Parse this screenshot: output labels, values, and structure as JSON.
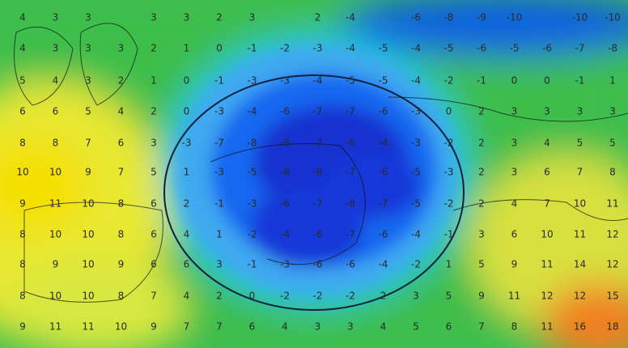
{
  "labels": [
    [
      4,
      3,
      3,
      null,
      3,
      3,
      2,
      3,
      null,
      2,
      -4,
      null,
      -6,
      -8,
      -9,
      -10,
      null,
      -10,
      -10
    ],
    [
      4,
      3,
      3,
      3,
      2,
      1,
      0,
      -1,
      -2,
      -3,
      -4,
      -5,
      -4,
      -5,
      -6,
      -5,
      -6,
      -7,
      -8
    ],
    [
      5,
      4,
      3,
      2,
      1,
      0,
      -1,
      -3,
      -3,
      -4,
      -5,
      -5,
      -4,
      -2,
      -1,
      0,
      0,
      -1,
      1
    ],
    [
      6,
      6,
      5,
      4,
      2,
      0,
      -3,
      -4,
      -6,
      -7,
      -7,
      -6,
      -3,
      0,
      2,
      3,
      3,
      3,
      3
    ],
    [
      8,
      8,
      7,
      6,
      3,
      -3,
      -7,
      -8,
      -8,
      -7,
      -6,
      -4,
      -3,
      -2,
      2,
      3,
      4,
      5,
      5
    ],
    [
      10,
      10,
      9,
      7,
      5,
      1,
      -3,
      -5,
      -8,
      -8,
      -7,
      -6,
      -5,
      -3,
      2,
      3,
      6,
      7,
      8
    ],
    [
      9,
      11,
      10,
      8,
      6,
      2,
      -1,
      -3,
      -6,
      -7,
      -8,
      -7,
      -5,
      -2,
      2,
      4,
      7,
      10,
      11
    ],
    [
      8,
      10,
      10,
      8,
      6,
      4,
      1,
      -2,
      -4,
      -6,
      -7,
      -6,
      -4,
      -1,
      3,
      6,
      10,
      11,
      12
    ],
    [
      8,
      9,
      10,
      9,
      6,
      6,
      3,
      -1,
      -3,
      -6,
      -6,
      -4,
      -2,
      1,
      5,
      9,
      11,
      14,
      12
    ],
    [
      8,
      10,
      10,
      8,
      7,
      4,
      2,
      0,
      -2,
      -2,
      -2,
      2,
      3,
      5,
      9,
      11,
      12,
      12,
      15
    ],
    [
      9,
      11,
      11,
      10,
      9,
      7,
      7,
      6,
      4,
      3,
      3,
      4,
      5,
      6,
      7,
      8,
      11,
      16,
      18
    ]
  ]
}
